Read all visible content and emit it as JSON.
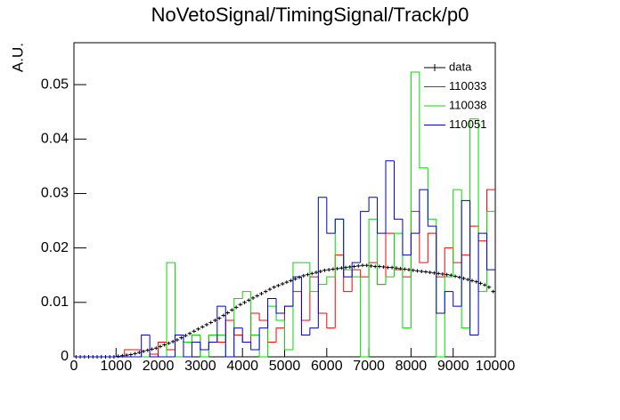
{
  "chart_data": {
    "type": "histogram",
    "title": "NoVetoSignal/TimingSignal/Track/p0",
    "y_label": "A.U.",
    "xlim": [
      0,
      10000
    ],
    "ylim": [
      0,
      0.0577
    ],
    "xticks": [
      0,
      1000,
      2000,
      3000,
      4000,
      5000,
      6000,
      7000,
      8000,
      9000,
      10000
    ],
    "yticks": [
      0,
      0.01,
      0.02,
      0.03,
      0.04,
      0.05
    ],
    "legend": "top right",
    "series": [
      {
        "name": "data",
        "color": "#000000",
        "style": "points",
        "bins": [
          0,
          100,
          200,
          300,
          400,
          500,
          600,
          700,
          800,
          900,
          1000,
          1100,
          1200,
          1300,
          1400,
          1500,
          1600,
          1700,
          1800,
          1900,
          2000,
          2100,
          2200,
          2300,
          2400,
          2500,
          2600,
          2700,
          2800,
          2900,
          3000,
          3100,
          3200,
          3300,
          3400,
          3500,
          3600,
          3700,
          3800,
          3900,
          4000,
          4100,
          4200,
          4300,
          4400,
          4500,
          4600,
          4700,
          4800,
          4900,
          5000,
          5100,
          5200,
          5300,
          5400,
          5500,
          5600,
          5700,
          5800,
          5900,
          6000,
          6100,
          6200,
          6300,
          6400,
          6500,
          6600,
          6700,
          6800,
          6900,
          7000,
          7100,
          7200,
          7300,
          7400,
          7500,
          7600,
          7700,
          7800,
          7900,
          8000,
          8100,
          8200,
          8300,
          8400,
          8500,
          8600,
          8700,
          8800,
          8900,
          9000,
          9100,
          9200,
          9300,
          9400,
          9500,
          9600,
          9700,
          9800,
          9900,
          10000
        ],
        "values": [
          0,
          0,
          0,
          0,
          0,
          0,
          0,
          0,
          0,
          0,
          0.0001,
          0.0002,
          0.0003,
          0.0004,
          0.0006,
          0.0008,
          0.001,
          0.0012,
          0.0014,
          0.0016,
          0.0019,
          0.0022,
          0.0025,
          0.0028,
          0.0031,
          0.0035,
          0.0039,
          0.0043,
          0.0047,
          0.0051,
          0.0055,
          0.0059,
          0.0063,
          0.0067,
          0.0071,
          0.0076,
          0.0081,
          0.0086,
          0.0091,
          0.0096,
          0.01,
          0.0104,
          0.0108,
          0.0112,
          0.0116,
          0.012,
          0.0124,
          0.0128,
          0.0131,
          0.0134,
          0.0137,
          0.014,
          0.0143,
          0.0146,
          0.0149,
          0.0151,
          0.0153,
          0.0155,
          0.0157,
          0.0159,
          0.016,
          0.0161,
          0.0162,
          0.0163,
          0.0164,
          0.0165,
          0.0166,
          0.0167,
          0.0168,
          0.0168,
          0.0167,
          0.0166,
          0.0166,
          0.0165,
          0.0164,
          0.0164,
          0.0163,
          0.0162,
          0.0161,
          0.016,
          0.0159,
          0.0158,
          0.0157,
          0.0156,
          0.0155,
          0.0154,
          0.0153,
          0.0152,
          0.0151,
          0.015,
          0.0148,
          0.0146,
          0.0144,
          0.0142,
          0.014,
          0.0138,
          0.0135,
          0.0132,
          0.0128,
          0.012
        ]
      },
      {
        "name": "110033",
        "color": "#ff0000",
        "style": "step",
        "bins": [
          0,
          200,
          400,
          600,
          800,
          1000,
          1200,
          1400,
          1600,
          1800,
          2000,
          2200,
          2400,
          2600,
          2800,
          3000,
          3200,
          3400,
          3600,
          3800,
          4000,
          4200,
          4400,
          4600,
          4800,
          5000,
          5200,
          5400,
          5600,
          5800,
          6000,
          6200,
          6400,
          6600,
          6800,
          7000,
          7200,
          7400,
          7600,
          7800,
          8000,
          8200,
          8400,
          8600,
          8800,
          9000,
          9200,
          9400,
          9600,
          9800,
          10000
        ],
        "values": [
          0,
          0,
          0,
          0,
          0,
          0,
          0.0013,
          0.0013,
          0,
          0.0005,
          0.0027,
          0.0013,
          0.004,
          0.0027,
          0.004,
          0.0013,
          0.004,
          0.0027,
          0.0067,
          0.004,
          0.0027,
          0.008,
          0.0067,
          0.0027,
          0.0053,
          0.0093,
          0.012,
          0.0067,
          0.0147,
          0.008,
          0.0053,
          0.0187,
          0.012,
          0.016,
          0.0147,
          0.0173,
          0.0133,
          0.0227,
          0.016,
          0.0147,
          0.0267,
          0.0173,
          0.0227,
          0.0147,
          0.02,
          0.0173,
          0.0187,
          0.024,
          0.0213,
          0.0307
        ]
      },
      {
        "name": "110038",
        "color": "#00dd00",
        "style": "step",
        "bins": [
          0,
          200,
          400,
          600,
          800,
          1000,
          1200,
          1400,
          1600,
          1800,
          2000,
          2200,
          2400,
          2600,
          2800,
          3000,
          3200,
          3400,
          3600,
          3800,
          4000,
          4200,
          4400,
          4600,
          4800,
          5000,
          5200,
          5400,
          5600,
          5800,
          6000,
          6200,
          6400,
          6600,
          6800,
          7000,
          7200,
          7400,
          7600,
          7800,
          8000,
          8200,
          8400,
          8600,
          8800,
          9000,
          9200,
          9400,
          9600,
          9800,
          10000
        ],
        "values": [
          0,
          0,
          0,
          0,
          0,
          0,
          0,
          0,
          0,
          0,
          0,
          0.0173,
          0,
          0.0027,
          0.004,
          0,
          0.004,
          0.004,
          0,
          0.0107,
          0.012,
          0.004,
          0,
          0.0093,
          0.0067,
          0.0013,
          0.0173,
          0.0173,
          0.012,
          0.0133,
          0.0147,
          0.0253,
          0.016,
          0.0147,
          0,
          0.0253,
          0.0133,
          0.0147,
          0.0227,
          0.0053,
          0.0523,
          0.0347,
          0.0253,
          0,
          0.0147,
          0.0307,
          0.0053,
          0.0437,
          0.012,
          0.0267
        ]
      },
      {
        "name": "110051",
        "color": "#0000cc",
        "style": "step",
        "bins": [
          0,
          200,
          400,
          600,
          800,
          1000,
          1200,
          1400,
          1600,
          1800,
          2000,
          2200,
          2400,
          2600,
          2800,
          3000,
          3200,
          3400,
          3600,
          3800,
          4000,
          4200,
          4400,
          4600,
          4800,
          5000,
          5200,
          5400,
          5600,
          5800,
          6000,
          6200,
          6400,
          6600,
          6800,
          7000,
          7200,
          7400,
          7600,
          7800,
          8000,
          8200,
          8400,
          8600,
          8800,
          9000,
          9200,
          9400,
          9600,
          9800,
          10000
        ],
        "values": [
          0,
          0,
          0,
          0,
          0,
          0,
          0,
          0,
          0.004,
          0,
          0,
          0,
          0.004,
          0,
          0.0027,
          0.0013,
          0.0027,
          0.0093,
          0,
          0.0053,
          0.0027,
          0.0013,
          0.0053,
          0.0107,
          0.008,
          0.0093,
          0.0147,
          0.004,
          0.0053,
          0.0293,
          0.0227,
          0.0253,
          0.0147,
          0.0173,
          0.0267,
          0.0293,
          0.0227,
          0.036,
          0.0253,
          0.0187,
          0.0227,
          0.0307,
          0.024,
          0.008,
          0.012,
          0.0093,
          0.0287,
          0.004,
          0.0227,
          0.016
        ]
      }
    ]
  }
}
